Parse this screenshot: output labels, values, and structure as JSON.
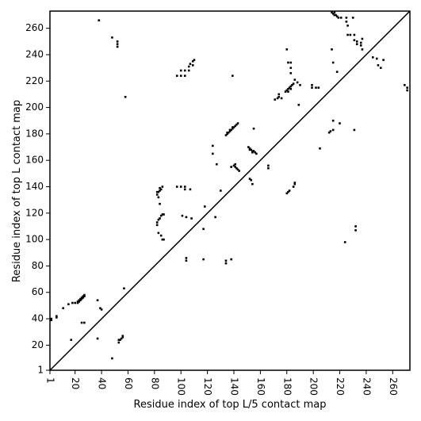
{
  "chart_data": {
    "type": "scatter",
    "xlabel": "Residue index of top L/5 contact map",
    "ylabel": "Residue index of top L contact map",
    "color": "#000000",
    "xlim": [
      1,
      273
    ],
    "ylim": [
      1,
      273
    ],
    "xticks": [
      1,
      20,
      40,
      60,
      80,
      100,
      120,
      140,
      160,
      180,
      200,
      220,
      240,
      260
    ],
    "yticks": [
      1,
      20,
      40,
      60,
      80,
      100,
      120,
      140,
      160,
      180,
      200,
      220,
      240,
      260
    ],
    "x": [
      2,
      2,
      6,
      6,
      11,
      15,
      18,
      20,
      22,
      23,
      24,
      24,
      25,
      25,
      26,
      26,
      27,
      27,
      23,
      22,
      17,
      25,
      27,
      37,
      37,
      39,
      40,
      48,
      53,
      54,
      55,
      56,
      56,
      53,
      57,
      58,
      38,
      48,
      52,
      52,
      52,
      82,
      83,
      84,
      85,
      86,
      82,
      84,
      83,
      84,
      82,
      83,
      84,
      85,
      86,
      87,
      82,
      83,
      85,
      86,
      87,
      97,
      100,
      103,
      103,
      107,
      97,
      100,
      103,
      100,
      103,
      106,
      106,
      107,
      109,
      110,
      109,
      101,
      104,
      108,
      104,
      104,
      117,
      117,
      118,
      124,
      124,
      127,
      130,
      126,
      134,
      134,
      138,
      134,
      135,
      136,
      137,
      138,
      139,
      140,
      141,
      142,
      143,
      135,
      137,
      139,
      139,
      138,
      140,
      141,
      142,
      143,
      144,
      141,
      152,
      153,
      154,
      155,
      151,
      152,
      153,
      154,
      155,
      156,
      157,
      152,
      154,
      166,
      166,
      171,
      173,
      174,
      174,
      176,
      179,
      180,
      181,
      182,
      183,
      184,
      185,
      181,
      183,
      186,
      188,
      190,
      183,
      180,
      181,
      183,
      183,
      180,
      181,
      182,
      186,
      186,
      185,
      189,
      199,
      199,
      202,
      204,
      205,
      212,
      213,
      215,
      215,
      220,
      224,
      231,
      232,
      232,
      214,
      215,
      216,
      217,
      218,
      219,
      216,
      221,
      225,
      230,
      225,
      226,
      226,
      228,
      231,
      231,
      233,
      233,
      236,
      236,
      237,
      237,
      214,
      215,
      218,
      245,
      248,
      249,
      251,
      253,
      269,
      271,
      271
    ],
    "values": [
      39,
      40,
      41,
      42,
      48,
      51,
      52,
      52,
      53,
      54,
      54,
      55,
      55,
      56,
      56,
      57,
      57,
      58,
      53,
      52,
      24,
      37,
      37,
      25,
      54,
      48,
      47,
      10,
      22,
      24,
      25,
      26,
      27,
      24,
      63,
      208,
      266,
      253,
      246,
      248,
      250,
      134,
      136,
      137,
      138,
      140,
      136,
      139,
      132,
      127,
      113,
      115,
      116,
      118,
      119,
      119,
      111,
      105,
      103,
      100,
      100,
      140,
      140,
      140,
      138,
      138,
      224,
      224,
      224,
      228,
      228,
      228,
      231,
      233,
      235,
      236,
      232,
      118,
      117,
      116,
      84,
      86,
      108,
      85,
      125,
      171,
      165,
      157,
      137,
      117,
      82,
      84,
      85,
      179,
      180,
      181,
      182,
      183,
      184,
      185,
      186,
      187,
      188,
      181,
      183,
      185,
      224,
      155,
      156,
      155,
      154,
      153,
      152,
      157,
      146,
      145,
      142,
      184,
      170,
      169,
      168,
      167,
      167,
      166,
      165,
      168,
      166,
      156,
      154,
      206,
      207,
      208,
      210,
      207,
      212,
      213,
      214,
      215,
      216,
      217,
      218,
      212,
      214,
      221,
      219,
      217,
      226,
      244,
      234,
      234,
      230,
      135,
      136,
      137,
      142,
      143,
      140,
      202,
      217,
      215,
      215,
      215,
      169,
      181,
      182,
      183,
      190,
      188,
      98,
      183,
      107,
      110,
      272,
      271,
      270,
      270,
      269,
      268,
      272,
      268,
      268,
      268,
      265,
      262,
      255,
      255,
      255,
      251,
      248,
      250,
      249,
      247,
      244,
      252,
      244,
      234,
      227,
      238,
      237,
      232,
      230,
      236,
      217,
      215,
      213
    ]
  }
}
